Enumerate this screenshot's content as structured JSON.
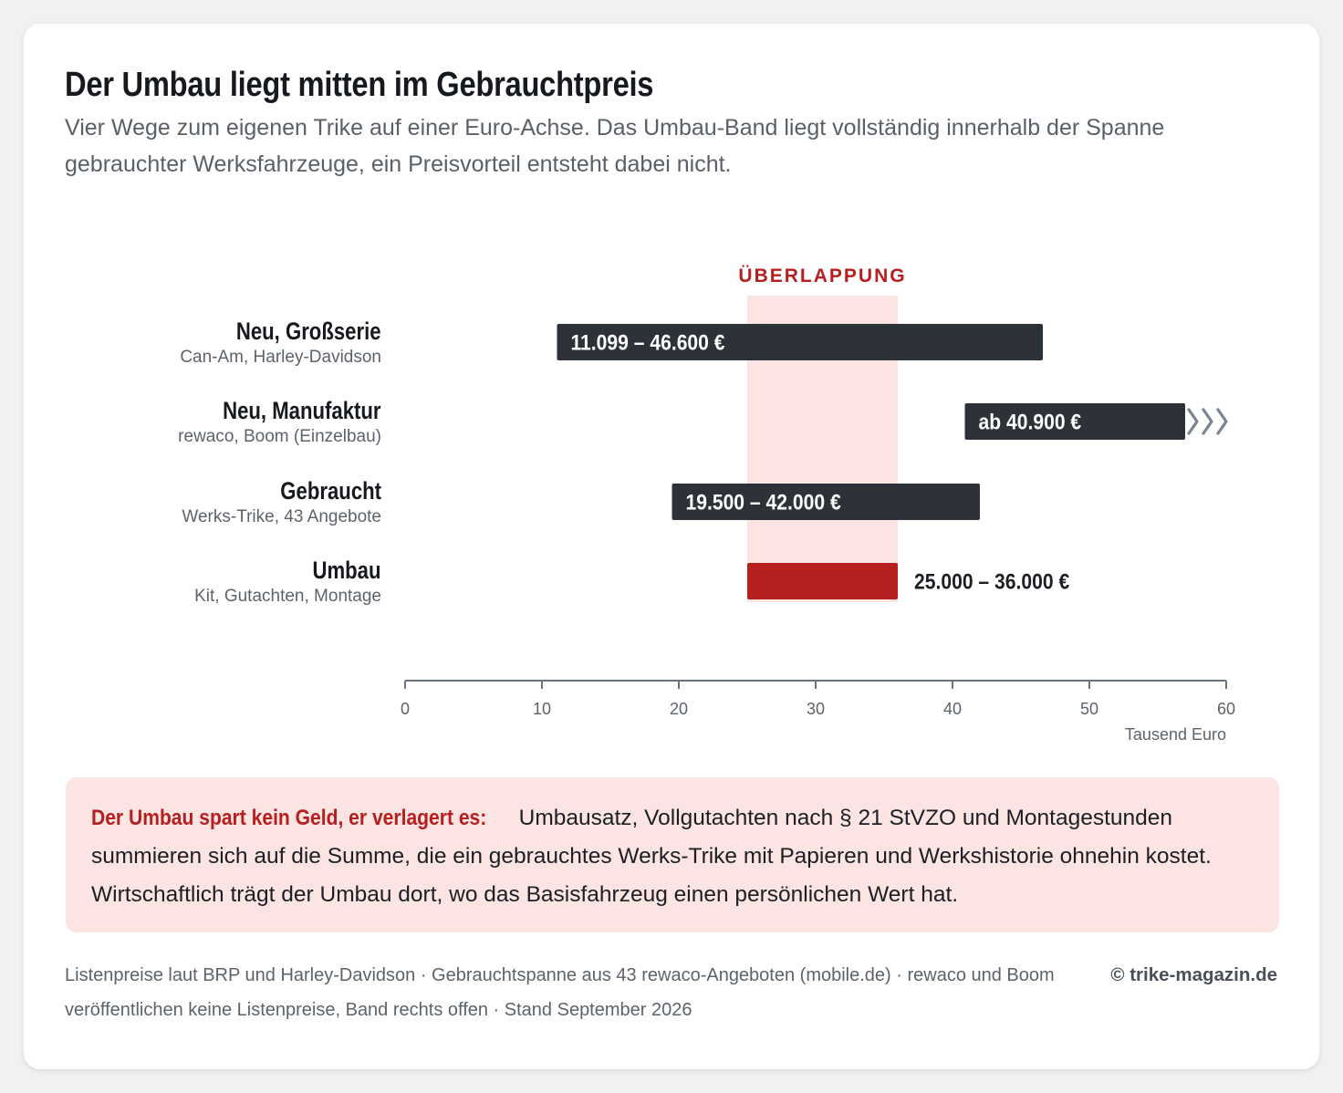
{
  "title": "Der Umbau liegt mitten im Gebrauchtpreis",
  "subtitle": "Vier Wege zum eigenen Trike auf einer Euro-Achse. Das Umbau-Band liegt vollständig innerhalb der Spanne gebrauchter Werksfahrzeuge, ein Preisvorteil entsteht dabei nicht.",
  "chart_data": {
    "type": "bar",
    "orientation": "horizontal-range",
    "unit": "Tausend Euro",
    "xlabel": "Tausend Euro",
    "xlim": [
      0,
      60
    ],
    "xticks": [
      0,
      10,
      20,
      30,
      40,
      50,
      60
    ],
    "overlap": {
      "label": "ÜBERLAPPUNG",
      "from": 25,
      "to": 36
    },
    "rows": [
      {
        "name": "Neu, Großserie",
        "sub": "Can-Am, Harley-Davidson",
        "from": 11.099,
        "to": 46.6,
        "label": "11.099 – 46.600 €",
        "color": "#2d3138",
        "open_right": false,
        "label_position": "inside"
      },
      {
        "name": "Neu, Manufaktur",
        "sub": "rewaco, Boom (Einzelbau)",
        "from": 40.9,
        "to": 57,
        "label": "ab 40.900 €",
        "color": "#2d3138",
        "open_right": true,
        "label_position": "inside"
      },
      {
        "name": "Gebraucht",
        "sub": "Werks-Trike, 43 Angebote",
        "from": 19.5,
        "to": 42,
        "label": "19.500 – 42.000 €",
        "color": "#2d3138",
        "open_right": false,
        "label_position": "inside"
      },
      {
        "name": "Umbau",
        "sub": "Kit, Gutachten, Montage",
        "from": 25,
        "to": 36,
        "label": "25.000 – 36.000 €",
        "color": "#b51f1f",
        "open_right": false,
        "label_position": "outside"
      }
    ],
    "colors": {
      "bar": "#2d3138",
      "highlight": "#b51f1f",
      "overlap_band": "#fbe4e2",
      "axis": "#6b7280",
      "open_arrow": "#7b8591"
    },
    "grid": false
  },
  "note": {
    "lead": "Der Umbau spart kein Geld, er verlagert es:",
    "text": " Umbausatz, Vollgutachten nach § 21 StVZO und Montagestunden summieren sich auf die Summe, die ein gebrauchtes Werks-Trike mit Papieren und Werkshistorie ohnehin kostet. Wirtschaftlich trägt der Umbau dort, wo das Basisfahrzeug einen persönlichen Wert hat."
  },
  "footer": {
    "source": "Listenpreise laut BRP und Harley-Davidson · Gebrauchtspanne aus 43 rewaco-Angeboten (mobile.de) · rewaco und Boom veröffentlichen keine Listenpreise, Band rechts offen · Stand September 2026",
    "brand": "© trike-magazin.de"
  }
}
